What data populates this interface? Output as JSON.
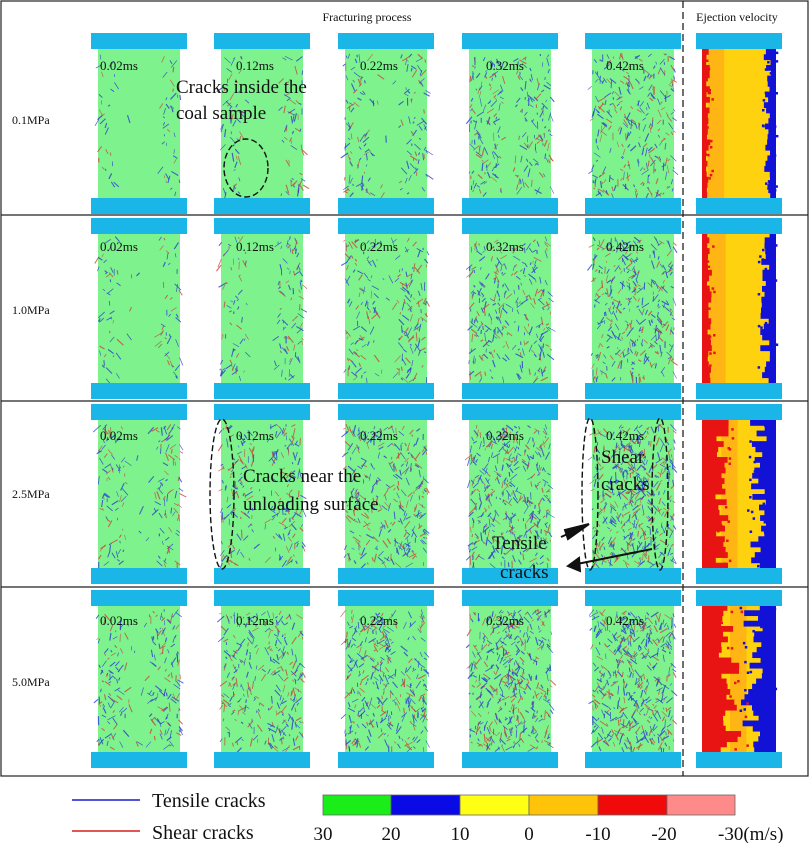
{
  "header": {
    "fracturing_title": "Fracturing process",
    "ejection_title": "Ejection velocity"
  },
  "pressures": [
    "0.1MPa",
    "1.0MPa",
    "2.5MPa",
    "5.0MPa"
  ],
  "times": [
    "0.02ms",
    "0.12ms",
    "0.22ms",
    "0.32ms",
    "0.42ms"
  ],
  "annotations": {
    "cracks_inside_line1": "Cracks inside the",
    "cracks_inside_line2": "coal sample",
    "cracks_near_line1": "Cracks near the",
    "cracks_near_line2": "unloading surface",
    "shear_line1": "Shear",
    "shear_line2": "cracks",
    "tensile_line1": "Tensile",
    "tensile_line2": "cracks"
  },
  "legend": {
    "tensile_label": "Tensile cracks",
    "shear_label": "Shear cracks",
    "tensile_color": "#1a1acc",
    "shear_color": "#d81e1e",
    "scale_values": [
      "30",
      "20",
      "10",
      "0",
      "-10",
      "-20",
      "-30(m/s)"
    ],
    "scale_colors": [
      "#19ee19",
      "#0a0ae6",
      "#ffff14",
      "#ffc40a",
      "#f00a0a",
      "#ff8a8a"
    ]
  },
  "colors": {
    "sample_green": "#7df28d",
    "platen_blue": "#1bb6e8",
    "ejection_yellow": "#ffd20f",
    "ejection_red": "#e81414",
    "ejection_blue": "#1212d6",
    "ejection_orange": "#ffb014"
  },
  "crack_density": [
    [
      0.06,
      0.16,
      0.28,
      0.45,
      0.6
    ],
    [
      0.12,
      0.26,
      0.4,
      0.58,
      0.72
    ],
    [
      0.3,
      0.45,
      0.62,
      0.85,
      1.0
    ],
    [
      0.4,
      0.58,
      0.74,
      0.92,
      1.0
    ]
  ]
}
